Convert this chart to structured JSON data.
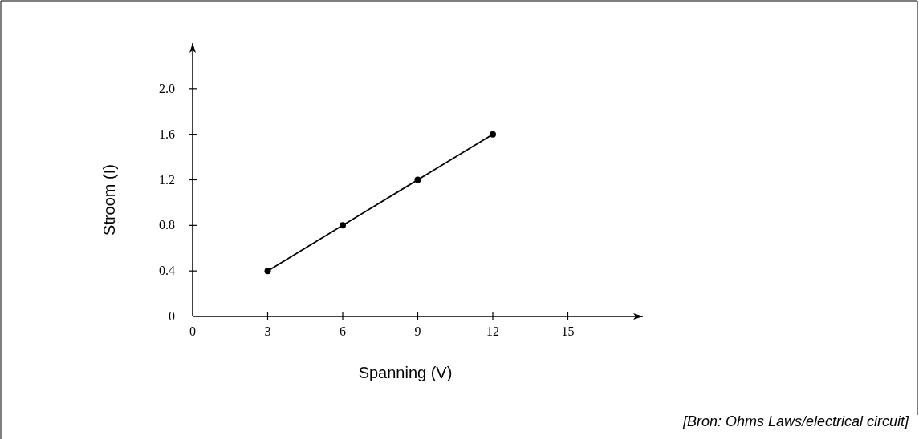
{
  "chart_data": {
    "type": "line",
    "xlabel": "Spanning (V)",
    "ylabel": "Stroom (I)",
    "x": [
      3,
      6,
      9,
      12
    ],
    "series": [
      {
        "color": "#000000",
        "values": [
          0.4,
          0.8,
          1.2,
          1.6
        ]
      }
    ],
    "xlim": [
      0,
      18
    ],
    "xticks": [
      0,
      3,
      6,
      9,
      12,
      15
    ],
    "ylim": [
      0,
      2.4
    ],
    "yticks": [
      0,
      {
        "value": 0.4,
        "label": "0.4"
      },
      {
        "value": 0.8,
        "label": "0.8"
      },
      {
        "value": 1.2,
        "label": "1.2"
      },
      {
        "value": 1.6,
        "label": "1.6"
      },
      {
        "value": 2,
        "label": "2.0"
      }
    ],
    "marker": "circle",
    "line_style": "solid",
    "grid": false,
    "annotations": [
      "[Bron: Ohms Laws/electrical circuit]"
    ]
  }
}
